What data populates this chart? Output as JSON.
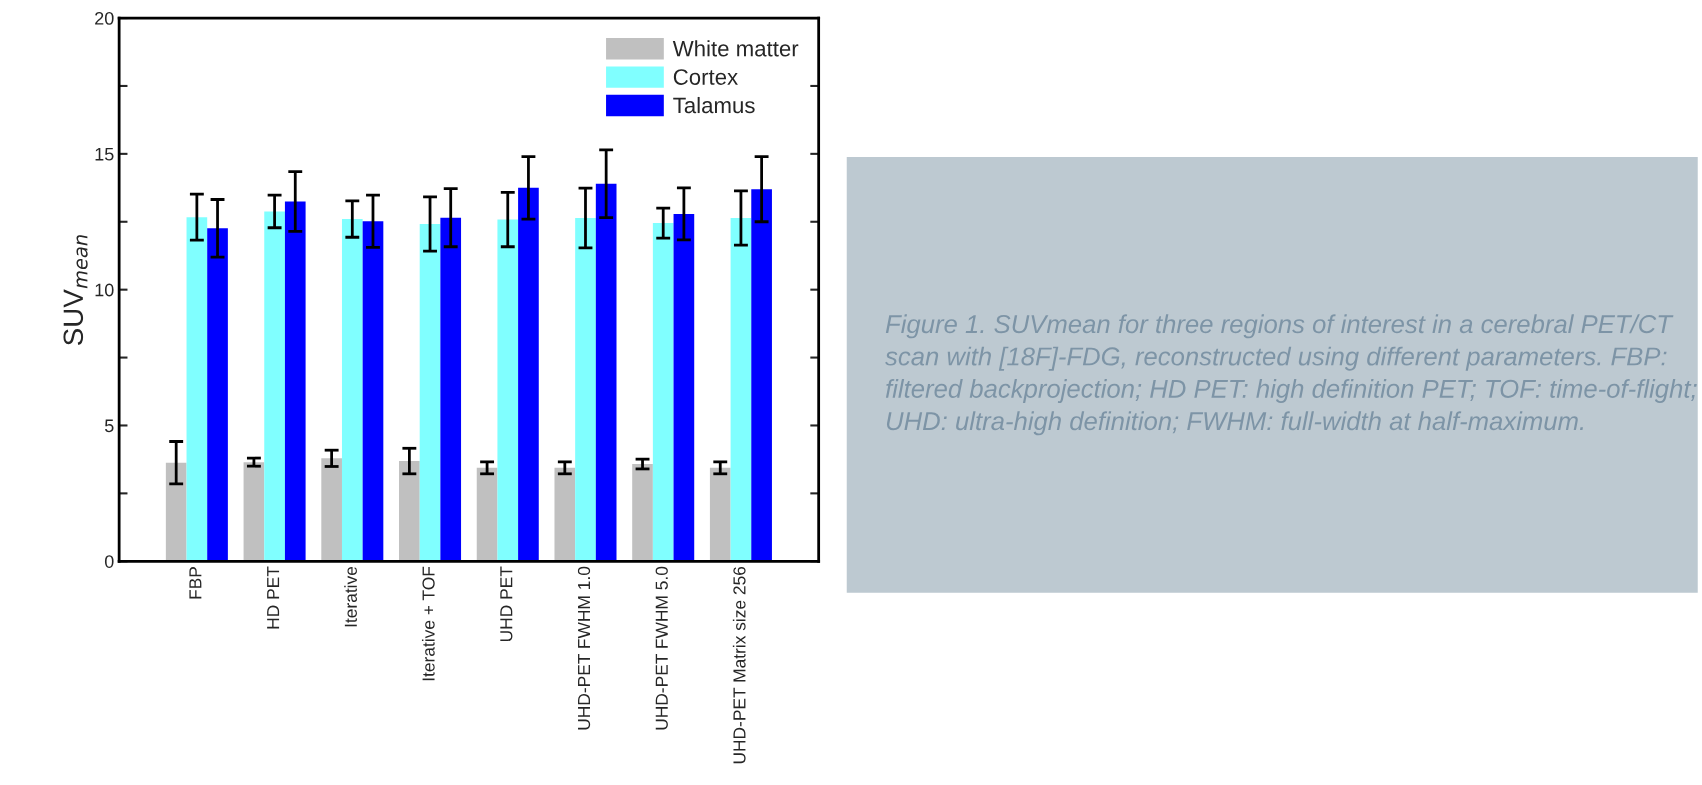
{
  "chart_data": {
    "type": "bar",
    "categories": [
      "FBP",
      "HD PET",
      "Iterative",
      "Iterative + TOF",
      "UHD PET",
      "UHD-PET FWHM 1.0",
      "UHD-PET FWHM 5.0",
      "UHD-PET Matrix size 256"
    ],
    "series": [
      {
        "name": "White matter",
        "color": "#c0c0c0",
        "values": [
          3.63,
          3.65,
          3.79,
          3.69,
          3.44,
          3.44,
          3.58,
          3.44
        ],
        "errors": [
          0.78,
          0.15,
          0.3,
          0.47,
          0.22,
          0.22,
          0.18,
          0.22
        ]
      },
      {
        "name": "Cortex",
        "color": "#80ffff",
        "values": [
          12.67,
          12.88,
          12.6,
          12.42,
          12.58,
          12.64,
          12.45,
          12.64
        ],
        "errors": [
          0.85,
          0.6,
          0.67,
          1.0,
          1.0,
          1.1,
          0.55,
          1.0
        ]
      },
      {
        "name": "Talamus",
        "color": "#0000ff",
        "values": [
          12.26,
          13.25,
          12.52,
          12.65,
          13.75,
          13.9,
          12.79,
          13.7
        ],
        "errors": [
          1.06,
          1.1,
          0.96,
          1.07,
          1.15,
          1.25,
          0.96,
          1.2
        ]
      }
    ],
    "ylabel": "SUV$_{mean}$",
    "ylim": [
      0,
      20
    ],
    "yticks": [
      0,
      {
        "value": 2.5,
        "label": null
      },
      5,
      {
        "value": 7.5,
        "label": null
      },
      10,
      {
        "value": 12.5,
        "label": null
      },
      15,
      {
        "value": 17.5,
        "label": null
      },
      20
    ],
    "legend": "top right",
    "grid": false,
    "annotations": [
      "Figure 1. SUVmean for three regions of interest in a cerebral PET/CT scan with [18F]-FDG, reconstructed using different parameters. FBP: filtered backprojection; HD PET: high definition PET; TOF: time-of-flight; UHD: ultra-high definition; FWHM: full-width at half-maximum."
    ]
  }
}
